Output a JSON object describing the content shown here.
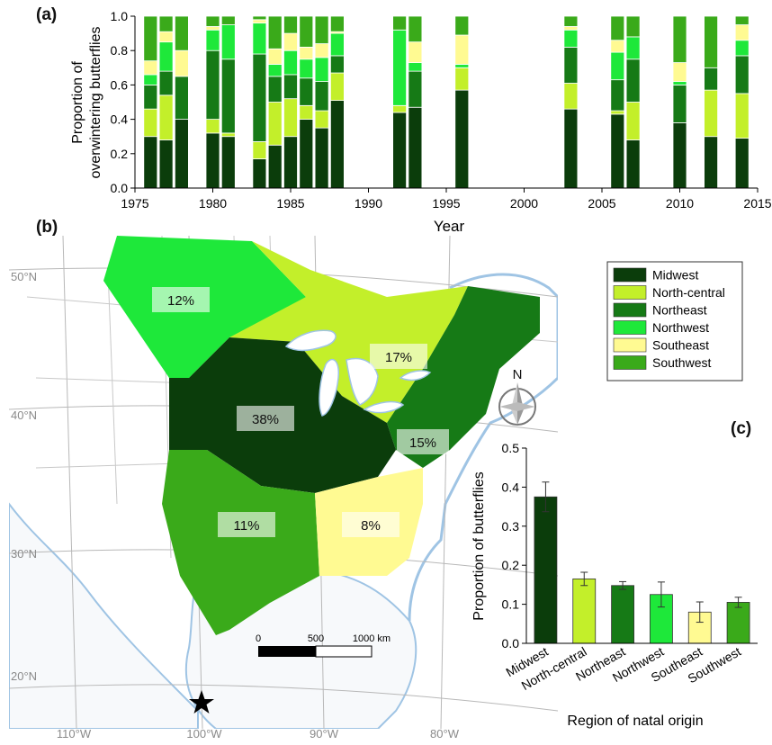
{
  "panel_labels": {
    "a": "(a)",
    "b": "(b)",
    "c": "(c)"
  },
  "regions": [
    {
      "name": "Midwest",
      "color": "#0b3d0b"
    },
    {
      "name": "North-central",
      "color": "#c3ef2a"
    },
    {
      "name": "Northeast",
      "color": "#167a16"
    },
    {
      "name": "Northwest",
      "color": "#1ee83a"
    },
    {
      "name": "Southeast",
      "color": "#fffa92"
    },
    {
      "name": "Southwest",
      "color": "#3aaa1a"
    }
  ],
  "chart_data": [
    {
      "type": "bar",
      "stacked": true,
      "panel": "a",
      "xlabel": "Year",
      "ylabel": [
        "Proportion of",
        "overwintering butterflies"
      ],
      "xlim": [
        1975,
        2015
      ],
      "ylim": [
        0,
        1.0
      ],
      "xticks": [
        1975,
        1980,
        1985,
        1990,
        1995,
        2000,
        2005,
        2010,
        2015
      ],
      "yticks": [
        "0.0",
        "0.2",
        "0.4",
        "0.6",
        "0.8",
        "1.0"
      ],
      "grid": false,
      "years": [
        1976,
        1977,
        1978,
        1980,
        1981,
        1983,
        1984,
        1985,
        1986,
        1987,
        1988,
        1992,
        1993,
        1996,
        2003,
        2006,
        2007,
        2010,
        2012,
        2014
      ],
      "series": [
        {
          "name": "Midwest",
          "values": [
            0.3,
            0.28,
            0.4,
            0.32,
            0.3,
            0.17,
            0.25,
            0.3,
            0.4,
            0.35,
            0.51,
            0.44,
            0.47,
            0.57,
            0.46,
            0.43,
            0.28,
            0.38,
            0.3,
            0.29
          ]
        },
        {
          "name": "North-central",
          "values": [
            0.16,
            0.26,
            0.0,
            0.08,
            0.02,
            0.1,
            0.25,
            0.22,
            0.08,
            0.1,
            0.16,
            0.04,
            0.0,
            0.13,
            0.15,
            0.02,
            0.22,
            0.0,
            0.27,
            0.26
          ]
        },
        {
          "name": "Northeast",
          "values": [
            0.14,
            0.14,
            0.25,
            0.4,
            0.43,
            0.51,
            0.15,
            0.14,
            0.16,
            0.17,
            0.1,
            0.0,
            0.21,
            0.0,
            0.21,
            0.18,
            0.25,
            0.22,
            0.13,
            0.22
          ]
        },
        {
          "name": "Northwest",
          "values": [
            0.06,
            0.17,
            0.0,
            0.12,
            0.2,
            0.18,
            0.07,
            0.14,
            0.11,
            0.14,
            0.13,
            0.44,
            0.05,
            0.02,
            0.1,
            0.16,
            0.13,
            0.02,
            0.0,
            0.09
          ]
        },
        {
          "name": "Southeast",
          "values": [
            0.08,
            0.06,
            0.15,
            0.02,
            0.0,
            0.02,
            0.09,
            0.1,
            0.07,
            0.08,
            0.01,
            0.0,
            0.12,
            0.17,
            0.02,
            0.07,
            0.0,
            0.11,
            0.0,
            0.09
          ]
        },
        {
          "name": "Southwest",
          "values": [
            0.26,
            0.09,
            0.2,
            0.06,
            0.05,
            0.02,
            0.19,
            0.1,
            0.18,
            0.16,
            0.09,
            0.08,
            0.15,
            0.11,
            0.06,
            0.14,
            0.12,
            0.27,
            0.3,
            0.05
          ]
        }
      ]
    },
    {
      "type": "bar",
      "panel": "c",
      "xlabel": "Region of natal origin",
      "ylabel": "Proportion of butterflies",
      "ylim": [
        0,
        0.5
      ],
      "yticks": [
        "0.0",
        "0.1",
        "0.2",
        "0.3",
        "0.4",
        "0.5"
      ],
      "grid": false,
      "categories": [
        "Midwest",
        "North-central",
        "Northeast",
        "Northwest",
        "Southeast",
        "Southwest"
      ],
      "values": [
        0.375,
        0.165,
        0.148,
        0.125,
        0.08,
        0.105
      ],
      "errors": [
        0.038,
        0.017,
        0.01,
        0.032,
        0.026,
        0.013
      ]
    }
  ],
  "map": {
    "region_percentages": [
      {
        "region": "Northwest",
        "label": "12%"
      },
      {
        "region": "North-central",
        "label": "17%"
      },
      {
        "region": "Midwest",
        "label": "38%"
      },
      {
        "region": "Northeast",
        "label": "15%"
      },
      {
        "region": "Southwest",
        "label": "11%"
      },
      {
        "region": "Southeast",
        "label": "8%"
      }
    ],
    "lat_labels": [
      "50°N",
      "40°N",
      "30°N",
      "20°N"
    ],
    "lon_labels": [
      "110°W",
      "100°W",
      "90°W",
      "80°W"
    ],
    "scale_bar": {
      "labels": [
        "0",
        "500",
        "1000 km"
      ]
    },
    "compass": "N",
    "overwintering_site_marker": "star"
  }
}
